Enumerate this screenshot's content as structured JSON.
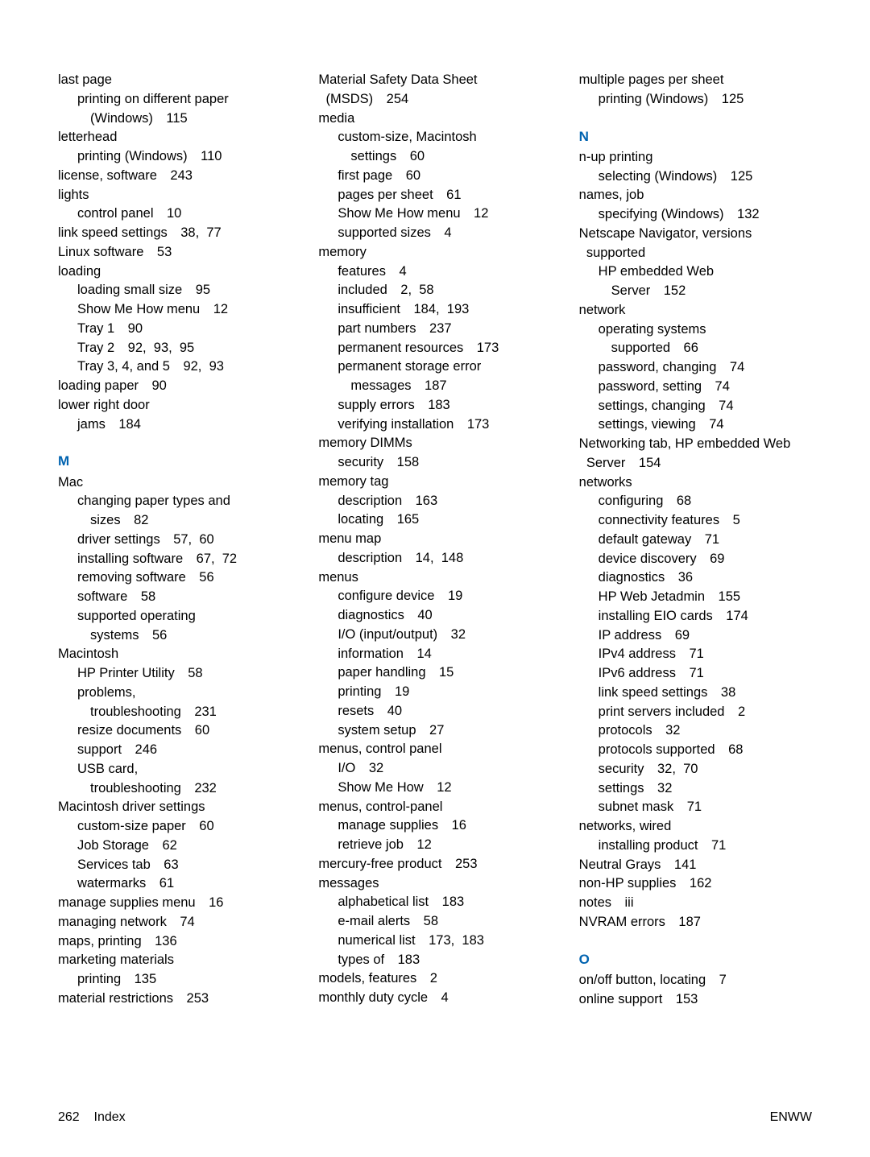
{
  "footer": {
    "left_page": "262",
    "left_label": "Index",
    "right": "ENWW"
  },
  "column1": [
    {
      "type": "line",
      "level": 0,
      "text": "last page"
    },
    {
      "type": "line",
      "level": 1,
      "text": "printing on different paper"
    },
    {
      "type": "line",
      "level": 2,
      "text": "(Windows) 115"
    },
    {
      "type": "line",
      "level": 0,
      "text": "letterhead"
    },
    {
      "type": "line",
      "level": 1,
      "text": "printing (Windows) 110"
    },
    {
      "type": "line",
      "level": 0,
      "text": "license, software 243"
    },
    {
      "type": "line",
      "level": 0,
      "text": "lights"
    },
    {
      "type": "line",
      "level": 1,
      "text": "control panel 10"
    },
    {
      "type": "line",
      "level": 0,
      "text": "link speed settings 38, 77"
    },
    {
      "type": "line",
      "level": 0,
      "text": "Linux software 53"
    },
    {
      "type": "line",
      "level": 0,
      "text": "loading"
    },
    {
      "type": "line",
      "level": 1,
      "text": "loading small size 95"
    },
    {
      "type": "line",
      "level": 1,
      "text": "Show Me How menu 12"
    },
    {
      "type": "line",
      "level": 1,
      "text": "Tray 1 90"
    },
    {
      "type": "line",
      "level": 1,
      "text": "Tray 2 92, 93, 95"
    },
    {
      "type": "line",
      "level": 1,
      "text": "Tray 3, 4, and 5 92, 93"
    },
    {
      "type": "line",
      "level": 0,
      "text": "loading paper 90"
    },
    {
      "type": "line",
      "level": 0,
      "text": "lower right door"
    },
    {
      "type": "line",
      "level": 1,
      "text": "jams 184"
    },
    {
      "type": "head",
      "text": "M"
    },
    {
      "type": "line",
      "level": 0,
      "text": "Mac"
    },
    {
      "type": "line",
      "level": 1,
      "text": "changing paper types and"
    },
    {
      "type": "line",
      "level": 2,
      "text": "sizes 82"
    },
    {
      "type": "line",
      "level": 1,
      "text": "driver settings 57, 60"
    },
    {
      "type": "line",
      "level": 1,
      "text": "installing software 67, 72"
    },
    {
      "type": "line",
      "level": 1,
      "text": "removing software 56"
    },
    {
      "type": "line",
      "level": 1,
      "text": "software 58"
    },
    {
      "type": "line",
      "level": 1,
      "text": "supported operating"
    },
    {
      "type": "line",
      "level": 2,
      "text": "systems 56"
    },
    {
      "type": "line",
      "level": 0,
      "text": "Macintosh"
    },
    {
      "type": "line",
      "level": 1,
      "text": "HP Printer Utility 58"
    },
    {
      "type": "line",
      "level": 1,
      "text": "problems,"
    },
    {
      "type": "line",
      "level": 2,
      "text": "troubleshooting 231"
    },
    {
      "type": "line",
      "level": 1,
      "text": "resize documents 60"
    },
    {
      "type": "line",
      "level": 1,
      "text": "support 246"
    },
    {
      "type": "line",
      "level": 1,
      "text": "USB card,"
    },
    {
      "type": "line",
      "level": 2,
      "text": "troubleshooting 232"
    },
    {
      "type": "line",
      "level": 0,
      "text": "Macintosh driver settings"
    },
    {
      "type": "line",
      "level": 1,
      "text": "custom-size paper 60"
    },
    {
      "type": "line",
      "level": 1,
      "text": "Job Storage 62"
    },
    {
      "type": "line",
      "level": 1,
      "text": "Services tab 63"
    },
    {
      "type": "line",
      "level": 1,
      "text": "watermarks 61"
    },
    {
      "type": "line",
      "level": 0,
      "text": "manage supplies menu 16"
    },
    {
      "type": "line",
      "level": 0,
      "text": "managing network 74"
    },
    {
      "type": "line",
      "level": 0,
      "text": "maps, printing 136"
    },
    {
      "type": "line",
      "level": 0,
      "text": "marketing materials"
    },
    {
      "type": "line",
      "level": 1,
      "text": "printing 135"
    },
    {
      "type": "line",
      "level": 0,
      "text": "material restrictions 253"
    }
  ],
  "column2": [
    {
      "type": "line",
      "level": 0,
      "text": "Material Safety Data Sheet"
    },
    {
      "type": "line",
      "level": 0,
      "text": " (MSDS) 254"
    },
    {
      "type": "line",
      "level": 0,
      "text": "media"
    },
    {
      "type": "line",
      "level": 1,
      "text": "custom-size, Macintosh"
    },
    {
      "type": "line",
      "level": 2,
      "text": "settings 60"
    },
    {
      "type": "line",
      "level": 1,
      "text": "first page 60"
    },
    {
      "type": "line",
      "level": 1,
      "text": "pages per sheet 61"
    },
    {
      "type": "line",
      "level": 1,
      "text": "Show Me How menu 12"
    },
    {
      "type": "line",
      "level": 1,
      "text": "supported sizes 4"
    },
    {
      "type": "line",
      "level": 0,
      "text": "memory"
    },
    {
      "type": "line",
      "level": 1,
      "text": "features 4"
    },
    {
      "type": "line",
      "level": 1,
      "text": "included 2, 58"
    },
    {
      "type": "line",
      "level": 1,
      "text": "insufficient 184, 193"
    },
    {
      "type": "line",
      "level": 1,
      "text": "part numbers 237"
    },
    {
      "type": "line",
      "level": 1,
      "text": "permanent resources 173"
    },
    {
      "type": "line",
      "level": 1,
      "text": "permanent storage error"
    },
    {
      "type": "line",
      "level": 2,
      "text": "messages 187"
    },
    {
      "type": "line",
      "level": 1,
      "text": "supply errors 183"
    },
    {
      "type": "line",
      "level": 1,
      "text": "verifying installation 173"
    },
    {
      "type": "line",
      "level": 0,
      "text": "memory DIMMs"
    },
    {
      "type": "line",
      "level": 1,
      "text": "security 158"
    },
    {
      "type": "line",
      "level": 0,
      "text": "memory tag"
    },
    {
      "type": "line",
      "level": 1,
      "text": "description 163"
    },
    {
      "type": "line",
      "level": 1,
      "text": "locating 165"
    },
    {
      "type": "line",
      "level": 0,
      "text": "menu map"
    },
    {
      "type": "line",
      "level": 1,
      "text": "description 14, 148"
    },
    {
      "type": "line",
      "level": 0,
      "text": "menus"
    },
    {
      "type": "line",
      "level": 1,
      "text": "configure device 19"
    },
    {
      "type": "line",
      "level": 1,
      "text": "diagnostics 40"
    },
    {
      "type": "line",
      "level": 1,
      "text": "I/O (input/output) 32"
    },
    {
      "type": "line",
      "level": 1,
      "text": "information 14"
    },
    {
      "type": "line",
      "level": 1,
      "text": "paper handling 15"
    },
    {
      "type": "line",
      "level": 1,
      "text": "printing 19"
    },
    {
      "type": "line",
      "level": 1,
      "text": "resets 40"
    },
    {
      "type": "line",
      "level": 1,
      "text": "system setup 27"
    },
    {
      "type": "line",
      "level": 0,
      "text": "menus, control panel"
    },
    {
      "type": "line",
      "level": 1,
      "text": "I/O 32"
    },
    {
      "type": "line",
      "level": 1,
      "text": "Show Me How 12"
    },
    {
      "type": "line",
      "level": 0,
      "text": "menus, control-panel"
    },
    {
      "type": "line",
      "level": 1,
      "text": "manage supplies 16"
    },
    {
      "type": "line",
      "level": 1,
      "text": "retrieve job 12"
    },
    {
      "type": "line",
      "level": 0,
      "text": "mercury-free product 253"
    },
    {
      "type": "line",
      "level": 0,
      "text": "messages"
    },
    {
      "type": "line",
      "level": 1,
      "text": "alphabetical list 183"
    },
    {
      "type": "line",
      "level": 1,
      "text": "e-mail alerts 58"
    },
    {
      "type": "line",
      "level": 1,
      "text": "numerical list 173, 183"
    },
    {
      "type": "line",
      "level": 1,
      "text": "types of 183"
    },
    {
      "type": "line",
      "level": 0,
      "text": "models, features 2"
    },
    {
      "type": "line",
      "level": 0,
      "text": "monthly duty cycle 4"
    }
  ],
  "column3": [
    {
      "type": "line",
      "level": 0,
      "text": "multiple pages per sheet"
    },
    {
      "type": "line",
      "level": 1,
      "text": "printing (Windows) 125"
    },
    {
      "type": "head",
      "text": "N"
    },
    {
      "type": "line",
      "level": 0,
      "text": "n-up printing"
    },
    {
      "type": "line",
      "level": 1,
      "text": "selecting (Windows) 125"
    },
    {
      "type": "line",
      "level": 0,
      "text": "names, job"
    },
    {
      "type": "line",
      "level": 1,
      "text": "specifying (Windows) 132"
    },
    {
      "type": "line",
      "level": 0,
      "text": "Netscape Navigator, versions"
    },
    {
      "type": "line",
      "level": 0,
      "text": " supported"
    },
    {
      "type": "line",
      "level": 1,
      "text": "HP embedded Web"
    },
    {
      "type": "line",
      "level": 2,
      "text": "Server 152"
    },
    {
      "type": "line",
      "level": 0,
      "text": "network"
    },
    {
      "type": "line",
      "level": 1,
      "text": "operating systems"
    },
    {
      "type": "line",
      "level": 2,
      "text": "supported 66"
    },
    {
      "type": "line",
      "level": 1,
      "text": "password, changing 74"
    },
    {
      "type": "line",
      "level": 1,
      "text": "password, setting 74"
    },
    {
      "type": "line",
      "level": 1,
      "text": "settings, changing 74"
    },
    {
      "type": "line",
      "level": 1,
      "text": "settings, viewing 74"
    },
    {
      "type": "line",
      "level": 0,
      "text": "Networking tab, HP embedded Web"
    },
    {
      "type": "line",
      "level": 0,
      "text": " Server 154"
    },
    {
      "type": "line",
      "level": 0,
      "text": "networks"
    },
    {
      "type": "line",
      "level": 1,
      "text": "configuring 68"
    },
    {
      "type": "line",
      "level": 1,
      "text": "connectivity features 5"
    },
    {
      "type": "line",
      "level": 1,
      "text": "default gateway 71"
    },
    {
      "type": "line",
      "level": 1,
      "text": "device discovery 69"
    },
    {
      "type": "line",
      "level": 1,
      "text": "diagnostics 36"
    },
    {
      "type": "line",
      "level": 1,
      "text": "HP Web Jetadmin 155"
    },
    {
      "type": "line",
      "level": 1,
      "text": "installing EIO cards 174"
    },
    {
      "type": "line",
      "level": 1,
      "text": "IP address 69"
    },
    {
      "type": "line",
      "level": 1,
      "text": "IPv4 address 71"
    },
    {
      "type": "line",
      "level": 1,
      "text": "IPv6 address 71"
    },
    {
      "type": "line",
      "level": 1,
      "text": "link speed settings 38"
    },
    {
      "type": "line",
      "level": 1,
      "text": "print servers included 2"
    },
    {
      "type": "line",
      "level": 1,
      "text": "protocols 32"
    },
    {
      "type": "line",
      "level": 1,
      "text": "protocols supported 68"
    },
    {
      "type": "line",
      "level": 1,
      "text": "security 32, 70"
    },
    {
      "type": "line",
      "level": 1,
      "text": "settings 32"
    },
    {
      "type": "line",
      "level": 1,
      "text": "subnet mask 71"
    },
    {
      "type": "line",
      "level": 0,
      "text": "networks, wired"
    },
    {
      "type": "line",
      "level": 1,
      "text": "installing product 71"
    },
    {
      "type": "line",
      "level": 0,
      "text": "Neutral Grays 141"
    },
    {
      "type": "line",
      "level": 0,
      "text": "non-HP supplies 162"
    },
    {
      "type": "line",
      "level": 0,
      "text": "notes iii"
    },
    {
      "type": "line",
      "level": 0,
      "text": "NVRAM errors 187"
    },
    {
      "type": "head",
      "text": "O"
    },
    {
      "type": "line",
      "level": 0,
      "text": "on/off button, locating 7"
    },
    {
      "type": "line",
      "level": 0,
      "text": "online support 153"
    }
  ]
}
